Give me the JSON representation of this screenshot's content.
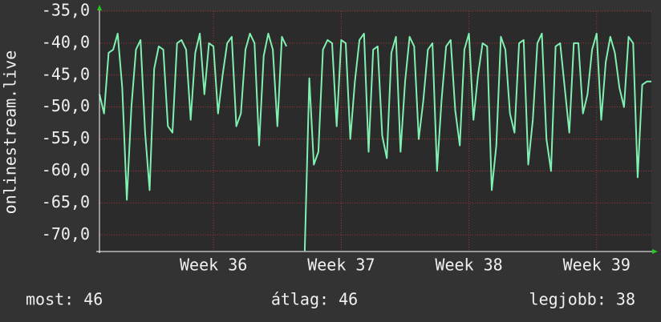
{
  "chart_data": {
    "type": "line",
    "y_label": "onlinestream.live",
    "series": [
      {
        "name": "onlinestream.live",
        "color": "#80f0b0",
        "values": [
          -48,
          -51,
          -41.5,
          -41,
          -38.5,
          -47,
          -64.5,
          -50,
          -41,
          -39.5,
          -54,
          -63,
          -44,
          -40.5,
          -41,
          -53,
          -54,
          -40,
          -39.5,
          -41,
          -52,
          -41.5,
          -38.5,
          -48,
          -40,
          -40.5,
          -51,
          -45,
          -40,
          -39,
          -53,
          -51,
          -41,
          -38.5,
          -40,
          -56,
          -42,
          -38.5,
          -41,
          -53,
          -39,
          -40.5,
          null,
          null,
          null,
          -72.5,
          -45.5,
          -59,
          -57,
          -41,
          -39.5,
          -40,
          -53,
          -39.5,
          -40,
          -55,
          -46,
          -39.5,
          -38.5,
          -57,
          -41,
          -40.5,
          -54.5,
          -58,
          -41.5,
          -39,
          -57,
          -46,
          -39,
          -40.5,
          -55,
          -49,
          -41,
          -40,
          -60,
          -49,
          -40.5,
          -39.5,
          -50.5,
          -56,
          -41,
          -38.5,
          -52,
          -45,
          -40,
          -40.5,
          -63,
          -56,
          -39,
          -41,
          -51,
          -54,
          -40,
          -39.5,
          -59,
          -52,
          -40,
          -38.5,
          -55,
          -60,
          -40.5,
          -40,
          -47,
          -54,
          -40,
          -40,
          -51,
          -48,
          -41,
          -38.5,
          -52,
          -43,
          -39,
          -41.5,
          -47,
          -50,
          -39,
          -40,
          -61,
          -46.5,
          -46,
          -46
        ]
      }
    ],
    "xlim": [
      0,
      121
    ],
    "xticks": [
      {
        "value": 25,
        "label": "Week 36"
      },
      {
        "value": 53,
        "label": "Week 37"
      },
      {
        "value": 81,
        "label": "Week 38"
      },
      {
        "value": 109,
        "label": "Week 39"
      }
    ],
    "ylim": [
      -72.6,
      -35
    ],
    "yticks": [
      {
        "value": -35,
        "label": "-35,0"
      },
      {
        "value": -40,
        "label": "-40,0"
      },
      {
        "value": -45,
        "label": "-45,0"
      },
      {
        "value": -50,
        "label": "-50,0"
      },
      {
        "value": -55,
        "label": "-55,0"
      },
      {
        "value": -60,
        "label": "-60,0"
      },
      {
        "value": -65,
        "label": "-65,0"
      },
      {
        "value": -70,
        "label": "-70,0"
      }
    ],
    "grid": true,
    "footer": [
      "most: 46",
      "átlag: 46",
      "legjobb: 38"
    ]
  }
}
